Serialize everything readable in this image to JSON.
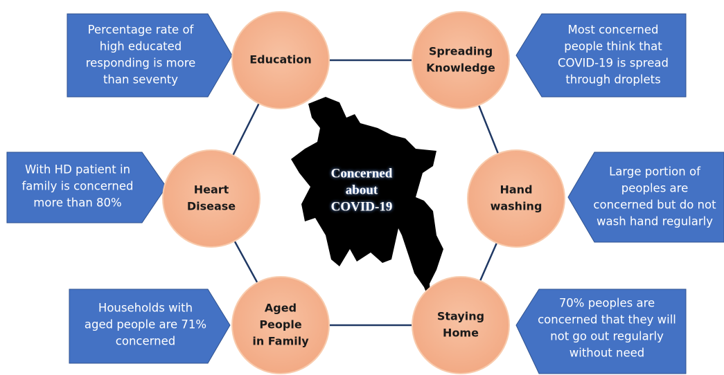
{
  "center": {
    "lines": [
      "Concerned",
      "about",
      "COVID-19"
    ]
  },
  "nodes": [
    {
      "label": [
        "Education"
      ],
      "note": [
        "Percentage rate of",
        "high educated",
        "responding is more",
        "than seventy"
      ]
    },
    {
      "label": [
        "Spreading",
        "Knowledge"
      ],
      "note": [
        "Most concerned",
        "people think that",
        "COVID-19 is spread",
        "through droplets"
      ]
    },
    {
      "label": [
        "Heart",
        "Disease"
      ],
      "note": [
        "With HD patient in",
        "family is concerned",
        "more than 80%"
      ]
    },
    {
      "label": [
        "Hand",
        "washing"
      ],
      "note": [
        "Large portion of",
        "peoples are",
        "concerned but do not",
        "wash hand regularly"
      ]
    },
    {
      "label": [
        "Aged",
        "People",
        "in Family"
      ],
      "note": [
        "Households with",
        "aged people are 71%",
        "concerned"
      ]
    },
    {
      "label": [
        "Staying",
        "Home"
      ],
      "note": [
        "70% peoples are",
        "concerned that they will",
        "not go out regularly",
        "without need"
      ]
    }
  ]
}
